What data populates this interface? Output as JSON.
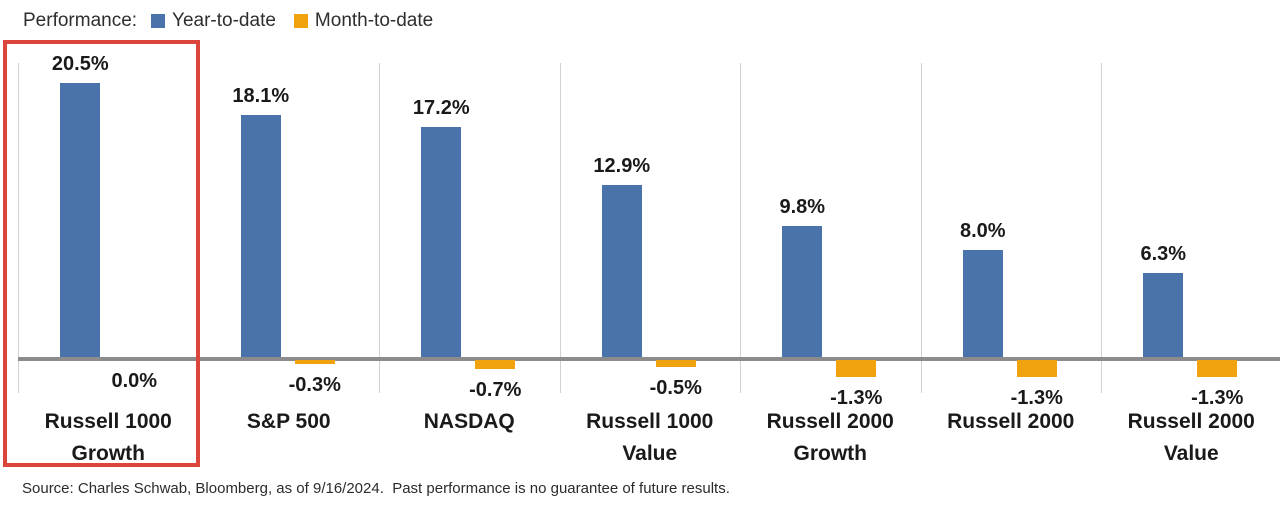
{
  "legend": {
    "title": "Performance:",
    "items": [
      {
        "label": "Year-to-date",
        "color": "#4a73ab"
      },
      {
        "label": "Month-to-date",
        "color": "#f0a30e"
      }
    ]
  },
  "chart_data": {
    "type": "bar",
    "title": "",
    "categories": [
      {
        "name": "Russell 1000 Growth",
        "lines": [
          "Russell 1000",
          "Growth"
        ]
      },
      {
        "name": "S&P 500",
        "lines": [
          "S&P 500"
        ]
      },
      {
        "name": "NASDAQ",
        "lines": [
          "NASDAQ"
        ]
      },
      {
        "name": "Russell 1000 Value",
        "lines": [
          "Russell 1000",
          "Value"
        ]
      },
      {
        "name": "Russell 2000 Growth",
        "lines": [
          "Russell 2000",
          "Growth"
        ]
      },
      {
        "name": "Russell 2000",
        "lines": [
          "Russell 2000"
        ]
      },
      {
        "name": "Russell 2000 Value",
        "lines": [
          "Russell 2000",
          "Value"
        ]
      }
    ],
    "series": [
      {
        "name": "Year-to-date",
        "color": "#4a73ab",
        "values": [
          20.5,
          18.1,
          17.2,
          12.9,
          9.8,
          8.0,
          6.3
        ],
        "labels": [
          "20.5%",
          "18.1%",
          "17.2%",
          "12.9%",
          "9.8%",
          "8.0%",
          "6.3%"
        ]
      },
      {
        "name": "Month-to-date",
        "color": "#f0a30e",
        "values": [
          0.0,
          -0.3,
          -0.7,
          -0.5,
          -1.3,
          -1.3,
          -1.3
        ],
        "labels": [
          "0.0%",
          "-0.3%",
          "-0.7%",
          "-0.5%",
          "-1.3%",
          "-1.3%",
          "-1.3%"
        ]
      }
    ],
    "ylim": [
      -2.5,
      22.2
    ],
    "grid": "vertical category separators",
    "axis_color": "#8c8c8c",
    "gridline_color": "#d2d2d2",
    "legend_position": "top-left",
    "highlight": {
      "category": "Russell 1000 Growth",
      "style": "red outline box",
      "color": "#db453c"
    }
  },
  "source_note": "Source: Charles Schwab, Bloomberg, as of 9/16/2024.  Past performance is no guarantee of future results."
}
